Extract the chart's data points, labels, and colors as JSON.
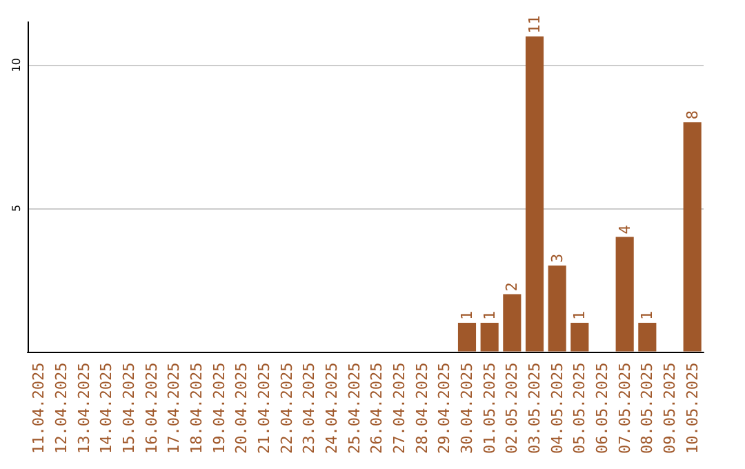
{
  "chart_data": {
    "type": "bar",
    "categories": [
      "11.04.2025",
      "12.04.2025",
      "13.04.2025",
      "14.04.2025",
      "15.04.2025",
      "16.04.2025",
      "17.04.2025",
      "18.04.2025",
      "19.04.2025",
      "20.04.2025",
      "21.04.2025",
      "22.04.2025",
      "23.04.2025",
      "24.04.2025",
      "25.04.2025",
      "26.04.2025",
      "27.04.2025",
      "28.04.2025",
      "29.04.2025",
      "30.04.2025",
      "01.05.2025",
      "02.05.2025",
      "03.05.2025",
      "04.05.2025",
      "05.05.2025",
      "06.05.2025",
      "07.05.2025",
      "08.05.2025",
      "09.05.2025",
      "10.05.2025"
    ],
    "values": [
      0,
      0,
      0,
      0,
      0,
      0,
      0,
      0,
      0,
      0,
      0,
      0,
      0,
      0,
      0,
      0,
      0,
      0,
      0,
      1,
      1,
      2,
      11,
      3,
      1,
      0,
      4,
      1,
      0,
      8
    ],
    "value_labels": [
      null,
      null,
      null,
      null,
      null,
      null,
      null,
      null,
      null,
      null,
      null,
      null,
      null,
      null,
      null,
      null,
      null,
      null,
      null,
      "1",
      "1",
      "2",
      "11",
      "3",
      "1",
      null,
      "4",
      "1",
      null,
      "8"
    ],
    "color": "#a0582a",
    "ylim": [
      0,
      11.5
    ],
    "yticks": [
      5,
      10
    ],
    "grid": "y"
  }
}
